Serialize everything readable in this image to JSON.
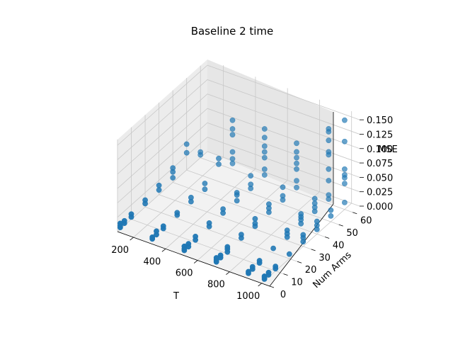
{
  "chart_data": {
    "type": "scatter",
    "projection": "3d",
    "title": "Baseline 2 time",
    "xlabel": "T",
    "ylabel": "Num Arms",
    "zlabel": "MSE",
    "xlim": [
      100,
      1050
    ],
    "ylim": [
      0,
      65
    ],
    "zlim": [
      0,
      0.16
    ],
    "xticks": [
      "200",
      "400",
      "600",
      "800",
      "1000"
    ],
    "yticks": [
      "0",
      "10",
      "20",
      "30",
      "40",
      "50",
      "60"
    ],
    "zticks": [
      "0.000",
      "0.025",
      "0.050",
      "0.075",
      "0.100",
      "0.125",
      "0.150"
    ],
    "grid": true,
    "marker_color": "#1f77b4",
    "pane_color": "#f2f2f2",
    "series": [
      {
        "points": [
          [
            100,
            2,
            0.003
          ],
          [
            100,
            2,
            0.006
          ],
          [
            100,
            2,
            0.01
          ],
          [
            100,
            5,
            0.004
          ],
          [
            100,
            5,
            0.008
          ],
          [
            100,
            10,
            0.004
          ],
          [
            100,
            10,
            0.009
          ],
          [
            100,
            20,
            0.006
          ],
          [
            100,
            20,
            0.012
          ],
          [
            100,
            30,
            0.008
          ],
          [
            100,
            30,
            0.016
          ],
          [
            100,
            40,
            0.008
          ],
          [
            100,
            40,
            0.018
          ],
          [
            100,
            40,
            0.025
          ],
          [
            100,
            50,
            0.03
          ],
          [
            100,
            50,
            0.045
          ],
          [
            100,
            60,
            0.005
          ],
          [
            100,
            60,
            0.01
          ],
          [
            300,
            2,
            0.003
          ],
          [
            300,
            2,
            0.006
          ],
          [
            300,
            5,
            0.004
          ],
          [
            300,
            5,
            0.01
          ],
          [
            300,
            10,
            0.004
          ],
          [
            300,
            10,
            0.008
          ],
          [
            300,
            20,
            0.006
          ],
          [
            300,
            20,
            0.01
          ],
          [
            300,
            30,
            0.008
          ],
          [
            300,
            30,
            0.015
          ],
          [
            300,
            40,
            0.008
          ],
          [
            300,
            40,
            0.018
          ],
          [
            300,
            50,
            0.03
          ],
          [
            300,
            50,
            0.04
          ],
          [
            300,
            60,
            0.01
          ],
          [
            300,
            60,
            0.018
          ],
          [
            300,
            60,
            0.03
          ],
          [
            300,
            60,
            0.06
          ],
          [
            300,
            60,
            0.07
          ],
          [
            300,
            60,
            0.085
          ],
          [
            500,
            2,
            0.003
          ],
          [
            500,
            2,
            0.006
          ],
          [
            500,
            2,
            0.01
          ],
          [
            500,
            5,
            0.003
          ],
          [
            500,
            5,
            0.008
          ],
          [
            500,
            10,
            0.004
          ],
          [
            500,
            10,
            0.01
          ],
          [
            500,
            20,
            0.006
          ],
          [
            500,
            20,
            0.012
          ],
          [
            500,
            30,
            0.008
          ],
          [
            500,
            30,
            0.015
          ],
          [
            500,
            40,
            0.008
          ],
          [
            500,
            40,
            0.018
          ],
          [
            500,
            40,
            0.022
          ],
          [
            500,
            50,
            0.008
          ],
          [
            500,
            50,
            0.015
          ],
          [
            500,
            50,
            0.03
          ],
          [
            500,
            60,
            0.01
          ],
          [
            500,
            60,
            0.02
          ],
          [
            500,
            60,
            0.04
          ],
          [
            500,
            60,
            0.05
          ],
          [
            500,
            60,
            0.06
          ],
          [
            500,
            60,
            0.075
          ],
          [
            500,
            60,
            0.09
          ],
          [
            700,
            2,
            0.003
          ],
          [
            700,
            2,
            0.006
          ],
          [
            700,
            2,
            0.01
          ],
          [
            700,
            5,
            0.004
          ],
          [
            700,
            5,
            0.008
          ],
          [
            700,
            10,
            0.003
          ],
          [
            700,
            10,
            0.008
          ],
          [
            700,
            10,
            0.012
          ],
          [
            700,
            20,
            0.006
          ],
          [
            700,
            20,
            0.012
          ],
          [
            700,
            30,
            0.005
          ],
          [
            700,
            30,
            0.01
          ],
          [
            700,
            30,
            0.018
          ],
          [
            700,
            40,
            0.008
          ],
          [
            700,
            40,
            0.015
          ],
          [
            700,
            40,
            0.022
          ],
          [
            700,
            50,
            0.008
          ],
          [
            700,
            50,
            0.015
          ],
          [
            700,
            50,
            0.03
          ],
          [
            700,
            60,
            0.008
          ],
          [
            700,
            60,
            0.02
          ],
          [
            700,
            60,
            0.04
          ],
          [
            700,
            60,
            0.05
          ],
          [
            700,
            60,
            0.06
          ],
          [
            700,
            60,
            0.07
          ],
          [
            700,
            60,
            0.085
          ],
          [
            900,
            2,
            0.003
          ],
          [
            900,
            2,
            0.006
          ],
          [
            900,
            5,
            0.004
          ],
          [
            900,
            5,
            0.008
          ],
          [
            900,
            10,
            0.004
          ],
          [
            900,
            10,
            0.008
          ],
          [
            900,
            20,
            0.008
          ],
          [
            900,
            30,
            0.006
          ],
          [
            900,
            30,
            0.012
          ],
          [
            900,
            30,
            0.018
          ],
          [
            900,
            40,
            0.008
          ],
          [
            900,
            40,
            0.015
          ],
          [
            900,
            40,
            0.02
          ],
          [
            900,
            40,
            0.025
          ],
          [
            900,
            50,
            0.008
          ],
          [
            900,
            50,
            0.015
          ],
          [
            900,
            50,
            0.022
          ],
          [
            900,
            50,
            0.03
          ],
          [
            900,
            60,
            0.008
          ],
          [
            900,
            60,
            0.015
          ],
          [
            900,
            60,
            0.04
          ],
          [
            900,
            60,
            0.06
          ],
          [
            900,
            60,
            0.085
          ],
          [
            900,
            60,
            0.09
          ],
          [
            900,
            60,
            0.11
          ],
          [
            900,
            60,
            0.125
          ],
          [
            900,
            60,
            0.13
          ],
          [
            1000,
            2,
            0.003
          ],
          [
            1000,
            2,
            0.006
          ],
          [
            1000,
            2,
            0.008
          ],
          [
            1000,
            5,
            0.004
          ],
          [
            1000,
            5,
            0.008
          ],
          [
            1000,
            10,
            0.004
          ],
          [
            1000,
            10,
            0.008
          ],
          [
            1000,
            20,
            0.008
          ],
          [
            1000,
            30,
            0.008
          ],
          [
            1000,
            30,
            0.015
          ],
          [
            1000,
            30,
            0.02
          ],
          [
            1000,
            40,
            0.008
          ],
          [
            1000,
            40,
            0.015
          ],
          [
            1000,
            40,
            0.022
          ],
          [
            1000,
            50,
            0.01
          ],
          [
            1000,
            50,
            0.02
          ],
          [
            1000,
            60,
            0.012
          ],
          [
            1000,
            60,
            0.045
          ],
          [
            1000,
            60,
            0.055
          ],
          [
            1000,
            60,
            0.06
          ],
          [
            1000,
            60,
            0.07
          ],
          [
            1000,
            60,
            0.118
          ],
          [
            1000,
            60,
            0.155
          ]
        ]
      }
    ]
  }
}
